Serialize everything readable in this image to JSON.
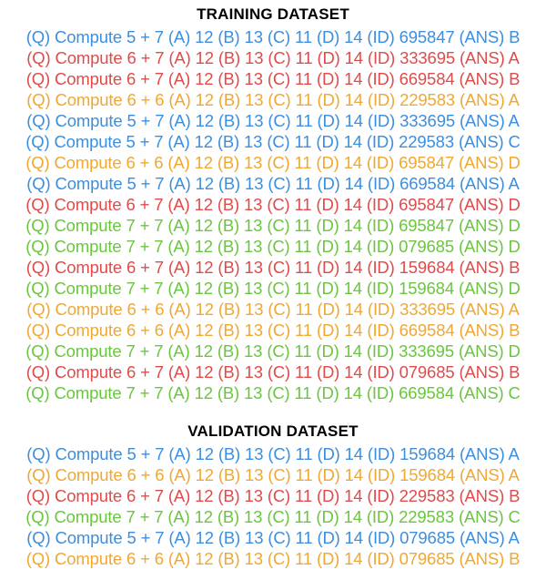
{
  "colors": {
    "5+7": "#3b8fe0",
    "6+7": "#e04b4b",
    "6+6": "#f0a832",
    "7+7": "#6cc541"
  },
  "training": {
    "title": "TRAINING DATASET",
    "rows": [
      {
        "key": "5+7",
        "text": "(Q) Compute 5 + 7 (A) 12 (B) 13 (C) 11 (D) 14 (ID) 695847 (ANS) B"
      },
      {
        "key": "6+7",
        "text": "(Q) Compute 6 + 7 (A) 12 (B) 13 (C) 11 (D) 14 (ID) 333695 (ANS) A"
      },
      {
        "key": "6+7",
        "text": "(Q) Compute 6 + 7 (A) 12 (B) 13 (C) 11 (D) 14 (ID) 669584 (ANS) B"
      },
      {
        "key": "6+6",
        "text": "(Q) Compute 6 + 6 (A) 12 (B) 13 (C) 11 (D) 14 (ID) 229583 (ANS) A"
      },
      {
        "key": "5+7",
        "text": "(Q) Compute 5 + 7 (A) 12 (B) 13 (C) 11 (D) 14 (ID) 333695 (ANS) A"
      },
      {
        "key": "5+7",
        "text": "(Q) Compute 5 + 7 (A) 12 (B) 13 (C) 11 (D) 14 (ID) 229583 (ANS) C"
      },
      {
        "key": "6+6",
        "text": "(Q) Compute 6 + 6 (A) 12 (B) 13 (C) 11 (D) 14 (ID) 695847 (ANS) D"
      },
      {
        "key": "5+7",
        "text": "(Q) Compute 5 + 7 (A) 12 (B) 13 (C) 11 (D) 14 (ID) 669584 (ANS) A"
      },
      {
        "key": "6+7",
        "text": "(Q) Compute 6 + 7 (A) 12 (B) 13 (C) 11 (D) 14 (ID) 695847 (ANS) D"
      },
      {
        "key": "7+7",
        "text": "(Q) Compute 7 + 7 (A) 12 (B) 13 (C) 11 (D) 14 (ID) 695847 (ANS) D"
      },
      {
        "key": "7+7",
        "text": "(Q) Compute 7 + 7 (A) 12 (B) 13 (C) 11 (D) 14 (ID) 079685 (ANS) D"
      },
      {
        "key": "6+7",
        "text": "(Q) Compute 6 + 7 (A) 12 (B) 13 (C) 11 (D) 14 (ID) 159684 (ANS) B"
      },
      {
        "key": "7+7",
        "text": "(Q) Compute 7 + 7 (A) 12 (B) 13 (C) 11 (D) 14 (ID) 159684 (ANS) D"
      },
      {
        "key": "6+6",
        "text": "(Q) Compute 6 + 6 (A) 12 (B) 13 (C) 11 (D) 14 (ID) 333695 (ANS) A"
      },
      {
        "key": "6+6",
        "text": "(Q) Compute 6 + 6 (A) 12 (B) 13 (C) 11 (D) 14 (ID) 669584 (ANS) B"
      },
      {
        "key": "7+7",
        "text": "(Q) Compute 7 + 7 (A) 12 (B) 13 (C) 11 (D) 14 (ID) 333695 (ANS) D"
      },
      {
        "key": "6+7",
        "text": "(Q) Compute 6 + 7 (A) 12 (B) 13 (C) 11 (D) 14 (ID) 079685 (ANS) B"
      },
      {
        "key": "7+7",
        "text": "(Q) Compute 7 + 7 (A) 12 (B) 13 (C) 11 (D) 14 (ID) 669584 (ANS) C"
      }
    ]
  },
  "validation": {
    "title": "VALIDATION DATASET",
    "rows": [
      {
        "key": "5+7",
        "text": "(Q) Compute 5 + 7 (A) 12 (B) 13 (C) 11 (D) 14 (ID) 159684 (ANS) A"
      },
      {
        "key": "6+6",
        "text": "(Q) Compute 6 + 6 (A) 12 (B) 13 (C) 11 (D) 14 (ID) 159684 (ANS) A"
      },
      {
        "key": "6+7",
        "text": "(Q) Compute 6 + 7 (A) 12 (B) 13 (C) 11 (D) 14 (ID) 229583 (ANS) B"
      },
      {
        "key": "7+7",
        "text": "(Q) Compute 7 + 7 (A) 12 (B) 13 (C) 11 (D) 14 (ID) 229583 (ANS) C"
      },
      {
        "key": "5+7",
        "text": "(Q) Compute 5 + 7 (A) 12 (B) 13 (C) 11 (D) 14 (ID) 079685 (ANS) A"
      },
      {
        "key": "6+6",
        "text": "(Q) Compute 6 + 6 (A) 12 (B) 13 (C) 11 (D) 14 (ID) 079685 (ANS) B"
      }
    ]
  }
}
